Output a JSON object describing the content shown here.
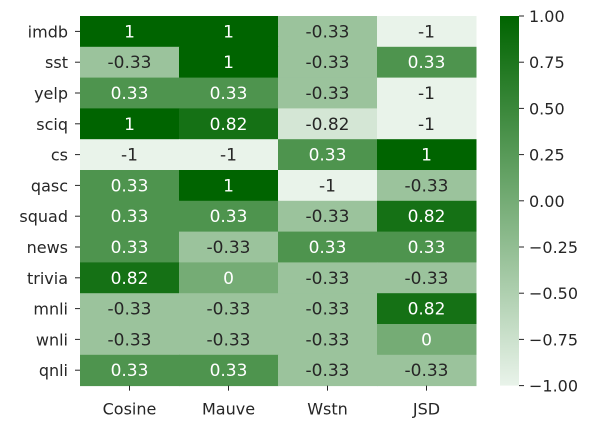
{
  "chart_data": {
    "type": "heatmap",
    "rows": [
      "imdb",
      "sst",
      "yelp",
      "sciq",
      "cs",
      "qasc",
      "squad",
      "news",
      "trivia",
      "mnli",
      "wnli",
      "qnli"
    ],
    "columns": [
      "Cosine",
      "Mauve",
      "Wstn",
      "JSD"
    ],
    "values": [
      [
        1,
        1,
        -0.33,
        -1
      ],
      [
        -0.33,
        1,
        -0.33,
        0.33
      ],
      [
        0.33,
        0.33,
        -0.33,
        -1
      ],
      [
        1,
        0.82,
        -0.82,
        -1
      ],
      [
        -1,
        -1,
        0.33,
        1
      ],
      [
        0.33,
        1,
        -1,
        -0.33
      ],
      [
        0.33,
        0.33,
        -0.33,
        0.82
      ],
      [
        0.33,
        -0.33,
        0.33,
        0.33
      ],
      [
        0.82,
        0,
        -0.33,
        -0.33
      ],
      [
        -0.33,
        -0.33,
        -0.33,
        0.82
      ],
      [
        -0.33,
        -0.33,
        -0.33,
        0
      ],
      [
        0.33,
        0.33,
        -0.33,
        -0.33
      ]
    ],
    "value_labels": [
      [
        "1",
        "1",
        "-0.33",
        "-1"
      ],
      [
        "-0.33",
        "1",
        "-0.33",
        "0.33"
      ],
      [
        "0.33",
        "0.33",
        "-0.33",
        "-1"
      ],
      [
        "1",
        "0.82",
        "-0.82",
        "-1"
      ],
      [
        "-1",
        "-1",
        "0.33",
        "1"
      ],
      [
        "0.33",
        "1",
        "-1",
        "-0.33"
      ],
      [
        "0.33",
        "0.33",
        "-0.33",
        "0.82"
      ],
      [
        "0.33",
        "-0.33",
        "0.33",
        "0.33"
      ],
      [
        "0.82",
        "0",
        "-0.33",
        "-0.33"
      ],
      [
        "-0.33",
        "-0.33",
        "-0.33",
        "0.82"
      ],
      [
        "-0.33",
        "-0.33",
        "-0.33",
        "0"
      ],
      [
        "0.33",
        "0.33",
        "-0.33",
        "-0.33"
      ]
    ],
    "vmin": -1,
    "vmax": 1,
    "colormap": {
      "low": "#e9f3ea",
      "high": "#006400"
    },
    "text_colors": {
      "light": "#ffffff",
      "dark": "#262626"
    },
    "colorbar": {
      "ticks": [
        1.0,
        0.75,
        0.5,
        0.25,
        0.0,
        -0.25,
        -0.5,
        -0.75,
        -1.0
      ],
      "tick_labels": [
        "1.00",
        "0.75",
        "0.50",
        "0.25",
        "0.00",
        "−0.25",
        "−0.50",
        "−0.75",
        "−1.00"
      ],
      "position": "right"
    },
    "title": "",
    "xlabel": "",
    "ylabel": ""
  }
}
